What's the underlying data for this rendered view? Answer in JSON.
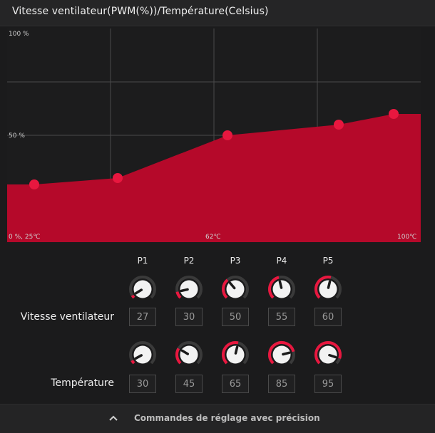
{
  "title": "Vitesse ventilateur(PWM(%))/Température(Celsius)",
  "colors": {
    "accent": "#b5092a",
    "point": "#e8173f",
    "grid": "#4a4a4a",
    "background": "#1b1b1c"
  },
  "chart_data": {
    "type": "area",
    "x_min": 25,
    "x_max": 100,
    "y_min": 0,
    "y_max": 100,
    "points": [
      {
        "name": "P1",
        "x": 30,
        "y": 27
      },
      {
        "name": "P2",
        "x": 45,
        "y": 30
      },
      {
        "name": "P3",
        "x": 65,
        "y": 50
      },
      {
        "name": "P4",
        "x": 85,
        "y": 55
      },
      {
        "name": "P5",
        "x": 95,
        "y": 60
      }
    ],
    "y_tick_labels": [
      "100 %",
      "50 %"
    ],
    "x_tick_labels": {
      "left": "0 %, 25℃",
      "mid": "62℃",
      "right": "100℃"
    },
    "grid": true
  },
  "controls": {
    "columns": [
      "P1",
      "P2",
      "P3",
      "P4",
      "P5"
    ],
    "fan_label": "Vitesse ventilateur",
    "temp_label": "Température",
    "fan_values": [
      "27",
      "30",
      "50",
      "55",
      "60"
    ],
    "temp_values": [
      "30",
      "45",
      "65",
      "85",
      "95"
    ],
    "fan_levels": [
      0.05,
      0.12,
      0.35,
      0.45,
      0.55
    ],
    "temp_levels": [
      0.06,
      0.28,
      0.55,
      0.78,
      0.9
    ]
  },
  "footer": {
    "label": "Commandes de réglage avec précision",
    "icon": "chevron-up-icon"
  }
}
